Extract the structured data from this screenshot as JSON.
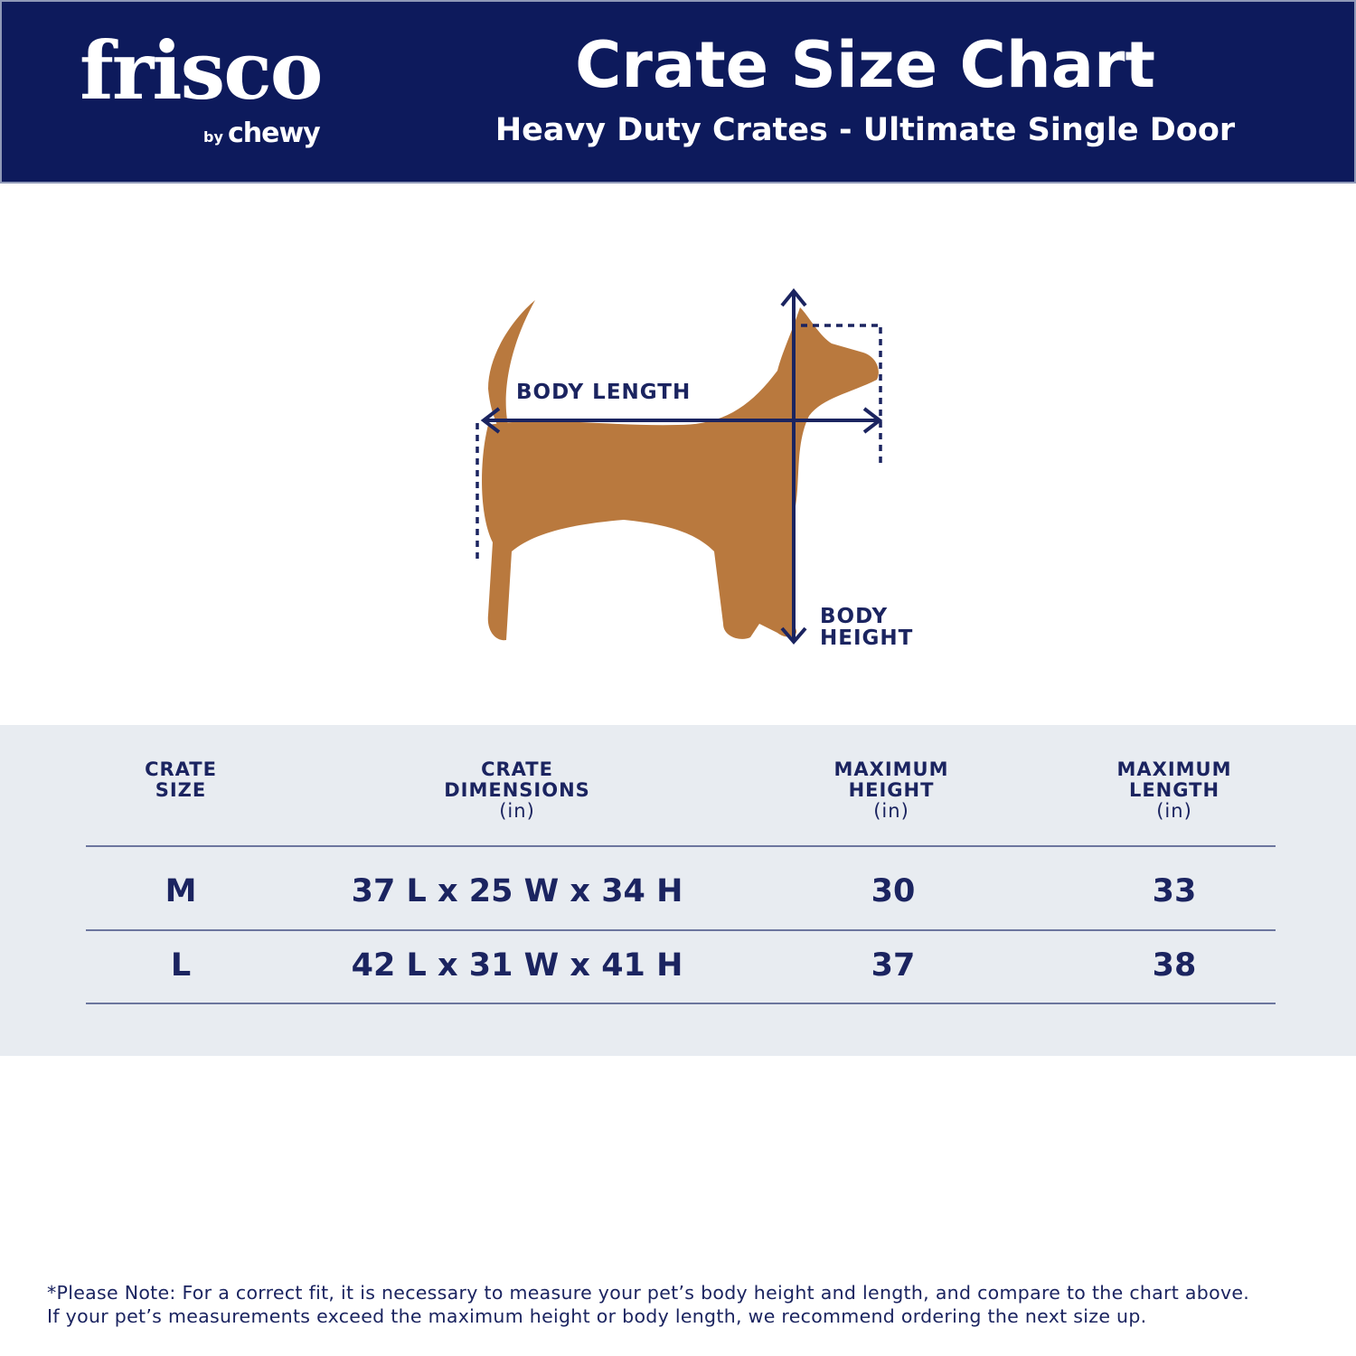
{
  "header": {
    "logo": {
      "brand": "frisco",
      "by": "by",
      "parent": "chewy"
    },
    "title": "Crate Size Chart",
    "subtitle": "Heavy Duty Crates - Ultimate Single Door"
  },
  "figure": {
    "body_length_label": "BODY LENGTH",
    "body_height_label_1": "BODY",
    "body_height_label_2": "HEIGHT"
  },
  "table": {
    "columns": [
      {
        "line1": "CRATE",
        "line2": "SIZE",
        "unit": ""
      },
      {
        "line1": "CRATE",
        "line2": "DIMENSIONS",
        "unit": "(in)"
      },
      {
        "line1": "MAXIMUM",
        "line2": "HEIGHT",
        "unit": "(in)"
      },
      {
        "line1": "MAXIMUM",
        "line2": "LENGTH",
        "unit": "(in)"
      }
    ],
    "rows": [
      [
        "M",
        "37 L x 25 W x 34 H",
        "30",
        "33"
      ],
      [
        "L",
        "42 L x 31 W x 41 H",
        "37",
        "38"
      ]
    ]
  },
  "note": {
    "line1": "*Please Note: For a correct fit, it is necessary to measure your pet’s body height and length, and compare to the chart above.",
    "line2": "If your pet’s measurements exceed the maximum height or body length, we recommend ordering the next size up."
  },
  "colors": {
    "navy": "#0d1a5c",
    "table_bg": "#e8ecf1",
    "text": "#1b2460"
  }
}
